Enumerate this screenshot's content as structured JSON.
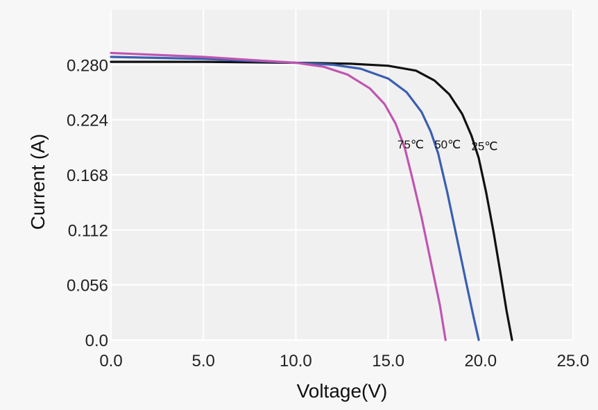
{
  "chart_data": {
    "type": "line",
    "title": "",
    "xlabel": "Voltage(V)",
    "ylabel": "Current (A)",
    "xlim": [
      0,
      25
    ],
    "ylim": [
      0,
      0.336
    ],
    "grid": true,
    "background_color": "#f0f0f0",
    "grid_color": "#ffffff",
    "x_ticks": [
      "0.0",
      "5.0",
      "10.0",
      "15.0",
      "20.0",
      "25.0"
    ],
    "y_ticks": [
      "0.0",
      "0.056",
      "0.112",
      "0.168",
      "0.224",
      "0.280"
    ],
    "series": [
      {
        "name": "25℃",
        "color": "#111111",
        "points": [
          [
            0,
            0.283
          ],
          [
            5,
            0.283
          ],
          [
            10,
            0.282
          ],
          [
            13,
            0.281
          ],
          [
            15,
            0.279
          ],
          [
            16.5,
            0.274
          ],
          [
            17.5,
            0.264
          ],
          [
            18.3,
            0.25
          ],
          [
            19.0,
            0.23
          ],
          [
            19.5,
            0.208
          ],
          [
            19.9,
            0.185
          ],
          [
            20.3,
            0.15
          ],
          [
            20.7,
            0.11
          ],
          [
            21.1,
            0.065
          ],
          [
            21.4,
            0.03
          ],
          [
            21.7,
            0.0
          ]
        ]
      },
      {
        "name": "50℃",
        "color": "#3a5fb0",
        "points": [
          [
            0,
            0.288
          ],
          [
            5,
            0.286
          ],
          [
            10,
            0.282
          ],
          [
            12,
            0.28
          ],
          [
            13.5,
            0.276
          ],
          [
            15,
            0.266
          ],
          [
            16,
            0.252
          ],
          [
            16.8,
            0.232
          ],
          [
            17.3,
            0.212
          ],
          [
            17.7,
            0.19
          ],
          [
            18.2,
            0.15
          ],
          [
            18.7,
            0.105
          ],
          [
            19.2,
            0.06
          ],
          [
            19.6,
            0.025
          ],
          [
            19.9,
            0.0
          ]
        ]
      },
      {
        "name": "75℃",
        "color": "#c055b0",
        "points": [
          [
            0,
            0.292
          ],
          [
            5,
            0.288
          ],
          [
            10,
            0.282
          ],
          [
            11.5,
            0.278
          ],
          [
            12.8,
            0.27
          ],
          [
            14,
            0.256
          ],
          [
            14.8,
            0.24
          ],
          [
            15.4,
            0.22
          ],
          [
            15.9,
            0.195
          ],
          [
            16.3,
            0.165
          ],
          [
            16.8,
            0.125
          ],
          [
            17.3,
            0.08
          ],
          [
            17.8,
            0.035
          ],
          [
            18.1,
            0.0
          ]
        ]
      }
    ],
    "annotations": [
      {
        "text": "75℃",
        "x": 15.5,
        "y": 0.195
      },
      {
        "text": "50℃",
        "x": 17.5,
        "y": 0.195
      },
      {
        "text": "25℃",
        "x": 19.5,
        "y": 0.193
      }
    ]
  }
}
